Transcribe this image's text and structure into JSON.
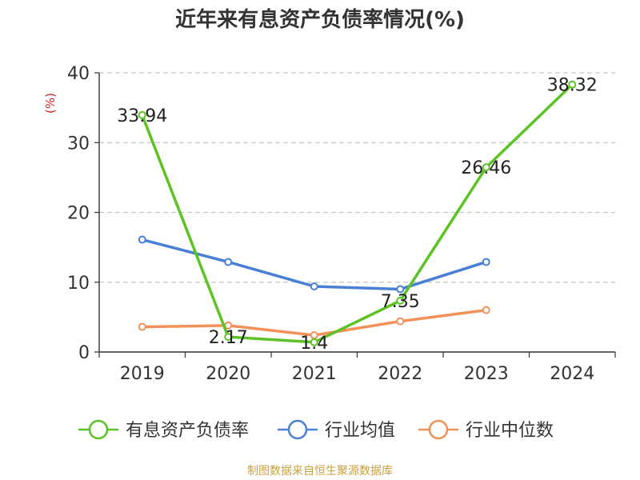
{
  "title": "近年来有息资产负债率情况(%)",
  "source": "制图数据来自恒生聚源数据库",
  "chart_data": {
    "type": "line",
    "title": "近年来有息资产负债率情况(%)",
    "ylabel": "(%)",
    "xlabel": "",
    "categories": [
      "2019",
      "2020",
      "2021",
      "2022",
      "2023",
      "2024"
    ],
    "ylim": [
      0,
      40
    ],
    "yticks": [
      0,
      10,
      20,
      30,
      40
    ],
    "grid": true,
    "legend_position": "bottom",
    "series": [
      {
        "name": "有息资产负债率",
        "color": "#5bc424",
        "values": [
          33.94,
          2.17,
          1.4,
          7.35,
          26.46,
          38.32
        ],
        "labels": [
          "33.94",
          "2.17",
          "1.4",
          "7.35",
          "26.46",
          "38.32"
        ]
      },
      {
        "name": "行业均值",
        "color": "#4a7fd6",
        "values": [
          16.1,
          12.9,
          9.4,
          9.0,
          12.9,
          null
        ]
      },
      {
        "name": "行业中位数",
        "color": "#f39159",
        "values": [
          3.6,
          3.8,
          2.4,
          4.4,
          6.0,
          null
        ]
      }
    ]
  }
}
